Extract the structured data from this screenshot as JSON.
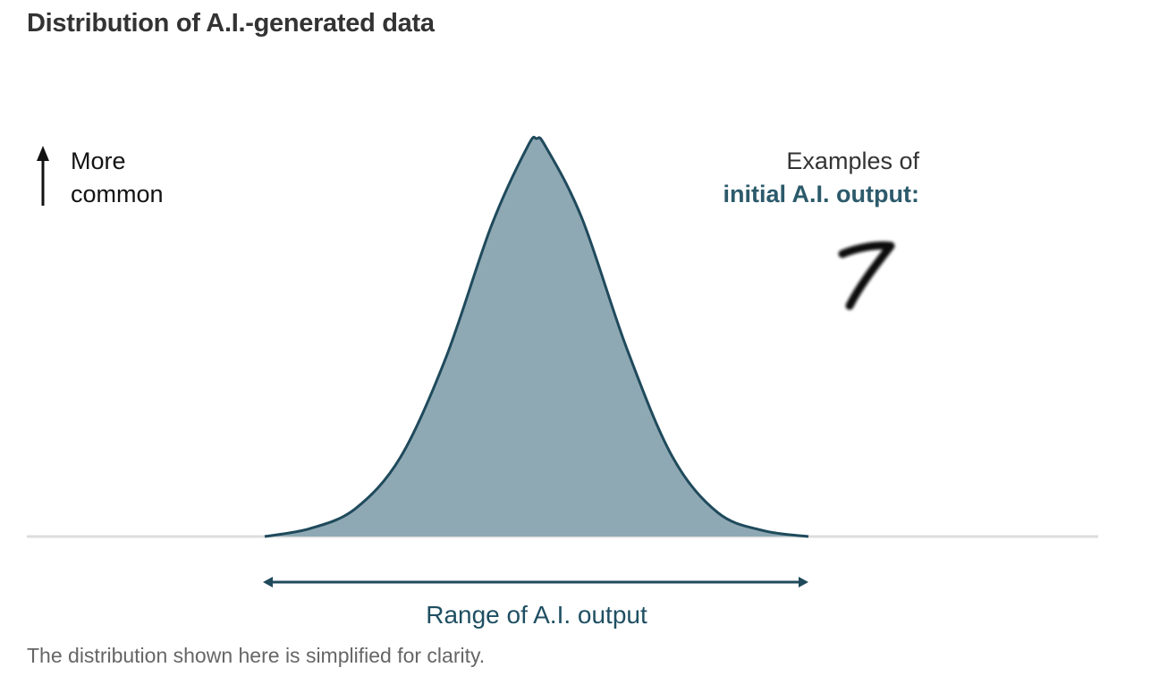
{
  "title": "Distribution of A.I.-generated data",
  "y_axis": {
    "line1": "More",
    "line2": "common"
  },
  "examples": {
    "line1": "Examples of",
    "line2": "initial A.I. output:",
    "sample_glyph": "7"
  },
  "range_label": "Range of A.I. output",
  "footnote": "The distribution shown here is simplified for clarity.",
  "colors": {
    "fill": "#8fa9b4",
    "stroke": "#1f4a5c",
    "baseline": "#dddddd",
    "accent_text": "#2c5a6b"
  },
  "chart_data": {
    "type": "area",
    "title": "Distribution of A.I.-generated data",
    "xlabel": "Range of A.I. output",
    "ylabel": "More common",
    "ticks": "none",
    "grid": false,
    "x": [
      -3.0,
      -2.5,
      -2.0,
      -1.5,
      -1.0,
      -0.5,
      -0.1,
      0.0,
      0.1,
      0.5,
      1.0,
      1.5,
      2.0,
      2.5,
      3.0
    ],
    "values": [
      0.0,
      0.02,
      0.07,
      0.2,
      0.45,
      0.78,
      0.98,
      1.0,
      0.98,
      0.8,
      0.47,
      0.2,
      0.06,
      0.015,
      0.0
    ]
  }
}
